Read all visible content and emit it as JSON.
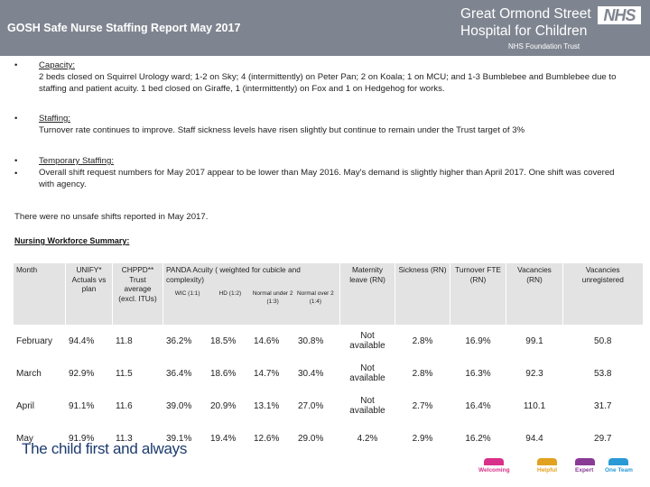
{
  "header": {
    "title": "GOSH Safe Nurse Staffing Report  May 2017",
    "logo_line1": "Great Ormond Street",
    "logo_line2": "Hospital for Children",
    "nhs": "NHS",
    "trust": "NHS Foundation Trust"
  },
  "sections": [
    {
      "bullet": "•",
      "heading": "Capacity:",
      "body": "2 beds closed on Squirrel Urology ward; 1-2 on Sky; 4 (intermittently) on Peter Pan; 2 on Koala; 1 on MCU; and 1-3 Bumblebee and Bumblebee due to staffing and patient acuity. 1 bed closed on Giraffe, 1 (intermittently) on Fox and 1 on Hedgehog for works."
    },
    {
      "bullet": "•",
      "heading": "Staffing:",
      "body": "Turnover rate continues to improve. Staff sickness levels have risen slightly but continue to remain under the Trust target of 3%"
    },
    {
      "bullet": "•",
      "heading": "Temporary Staffing:",
      "body": "Overall shift request numbers for May 2017 appear to be lower than May 2016. May's demand is slightly higher than April 2017.  One shift was covered with agency."
    }
  ],
  "summary_note": "There were no unsafe shifts reported in May 2017.",
  "summary_title": "Nursing Workforce Summary:",
  "table": {
    "headers": {
      "month": "Month",
      "unify": "UNIFY* Actuals vs plan",
      "chppd": "CHPPD** Trust average (excl. ITUs)",
      "panda": "PANDA Acuity ( weighted for cubicle and complexity)",
      "wic": "WIC (1:1)",
      "hd": "HD (1:2)",
      "normal_under": "Normal under 2 (1:3)",
      "normal_over": "Normal over 2 (1:4)",
      "maternity": "Maternity leave (RN)",
      "sickness": "Sickness (RN)",
      "turnover": "Turnover FTE (RN)",
      "vacancies": "Vacancies (RN)",
      "unregistered": "Vacancies unregistered"
    },
    "rows": [
      {
        "month": "February",
        "unify": "94.4%",
        "chppd": "11.8",
        "wic": "36.2%",
        "hd": "18.5%",
        "nu": "14.6%",
        "no": "30.8%",
        "maternity": "Not available",
        "sickness": "2.8%",
        "turnover": "16.9%",
        "vacancies": "99.1",
        "unreg": "50.8"
      },
      {
        "month": "March",
        "unify": "92.9%",
        "chppd": "11.5",
        "wic": "36.4%",
        "hd": "18.6%",
        "nu": "14.7%",
        "no": "30.4%",
        "maternity": "Not available",
        "sickness": "2.8%",
        "turnover": "16.3%",
        "vacancies": "92.3",
        "unreg": "53.8"
      },
      {
        "month": "April",
        "unify": "91.1%",
        "chppd": "11.6",
        "wic": "39.0%",
        "hd": "20.9%",
        "nu": "13.1%",
        "no": "27.0%",
        "maternity": "Not available",
        "sickness": "2.7%",
        "turnover": "16.4%",
        "vacancies": "110.1",
        "unreg": "31.7"
      },
      {
        "month": "May",
        "unify": "91.9%",
        "chppd": "11.3",
        "wic": "39.1%",
        "hd": "19.4%",
        "nu": "12.6%",
        "no": "29.0%",
        "maternity": "4.2%",
        "sickness": "2.9%",
        "turnover": "16.2%",
        "vacancies": "94.4",
        "unreg": "29.7"
      }
    ]
  },
  "footer": {
    "tagline": "The child first and always",
    "values": [
      {
        "label": "Welcoming",
        "color": "#d9308a"
      },
      {
        "label": "Helpful",
        "color": "#e0a21f"
      },
      {
        "label": "Expert",
        "color": "#8a3b96"
      },
      {
        "label": "One Team",
        "color": "#2a9ad6"
      }
    ]
  }
}
